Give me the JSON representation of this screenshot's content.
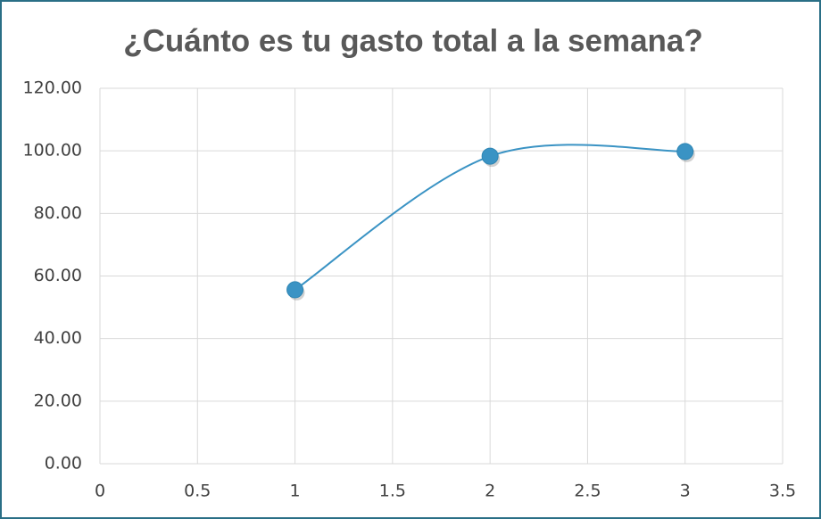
{
  "chart_data": {
    "type": "line",
    "title": "¿Cuánto es tu gasto total a la semana?",
    "smooth": true,
    "series": [
      {
        "color": "#3a93c4",
        "x": [
          1,
          2,
          3
        ],
        "values": [
          55.6,
          98.3,
          99.8
        ]
      }
    ],
    "xlim": [
      0,
      3.5
    ],
    "xticks": [
      0,
      0.5,
      1,
      1.5,
      2,
      2.5,
      3,
      3.5
    ],
    "ylim": [
      0,
      120
    ],
    "yticks": [
      {
        "value": 0,
        "label": "0.00"
      },
      {
        "value": 20,
        "label": "20.00"
      },
      {
        "value": 40,
        "label": "40.00"
      },
      {
        "value": 60,
        "label": "60.00"
      },
      {
        "value": 80,
        "label": "80.00"
      },
      {
        "value": 100,
        "label": "100.00"
      },
      {
        "value": 120,
        "label": "120.00"
      }
    ],
    "grid": true
  }
}
